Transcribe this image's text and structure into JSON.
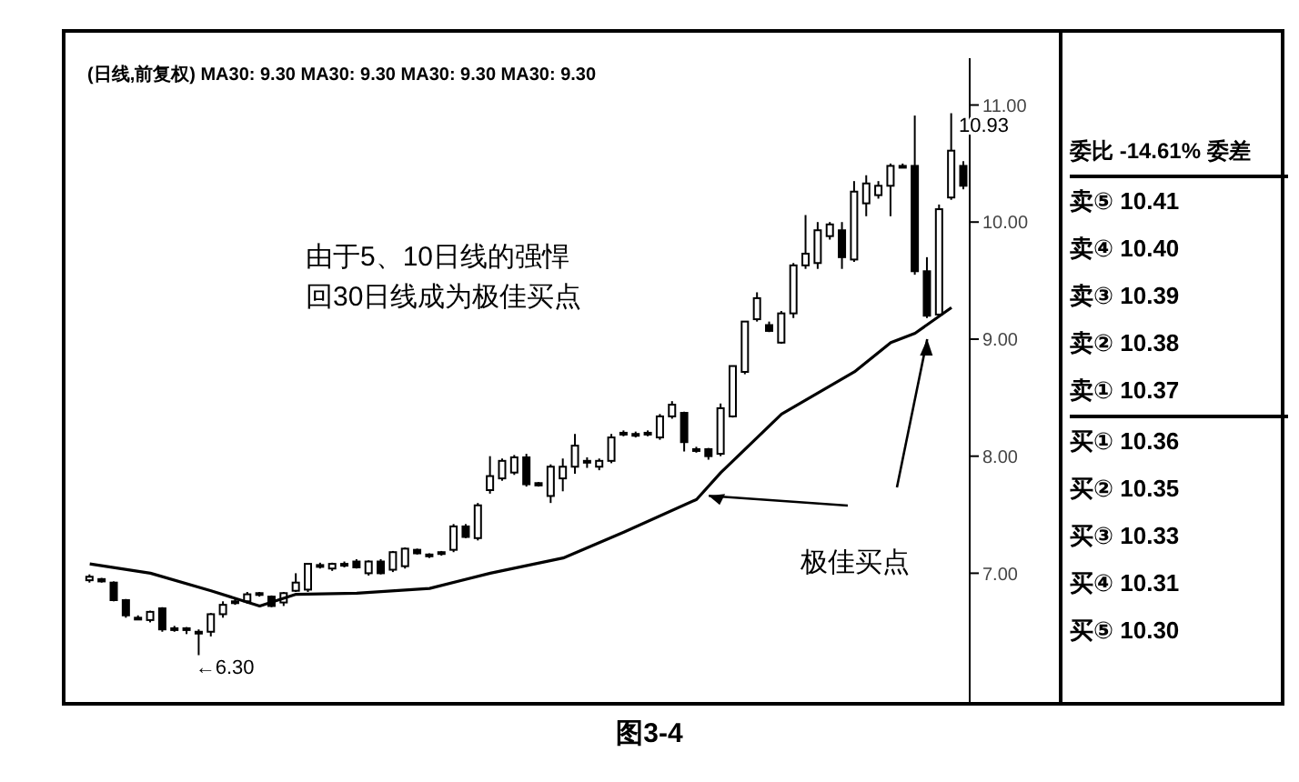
{
  "chart_data": [
    {
      "type": "candlestick",
      "title": "(日线,前复权) MA30: 9.30 MA30: 9.30 MA30: 9.30 MA30: 9.30",
      "categories": [
        null,
        null,
        null,
        null,
        null,
        null,
        null,
        null,
        null,
        null,
        null,
        null,
        null,
        null,
        null,
        null,
        null,
        null,
        null,
        null,
        null,
        null,
        null,
        null,
        null,
        null,
        null,
        null,
        null,
        null,
        null,
        null,
        null,
        null,
        null,
        null,
        null,
        null,
        null,
        null,
        null,
        null,
        null,
        null,
        null,
        null,
        null,
        null,
        null,
        null,
        null,
        null,
        null,
        null,
        null,
        null,
        null,
        null,
        null,
        null,
        null,
        null,
        null,
        null,
        null,
        null,
        null,
        null,
        null,
        null,
        null,
        null,
        null
      ],
      "ohlc": [
        [
          6.94,
          6.99,
          6.92,
          6.97
        ],
        [
          6.95,
          6.96,
          6.92,
          6.93
        ],
        [
          6.92,
          6.93,
          6.76,
          6.77
        ],
        [
          6.77,
          6.78,
          6.62,
          6.64
        ],
        [
          6.62,
          6.64,
          6.6,
          6.62
        ],
        [
          6.6,
          6.68,
          6.58,
          6.67
        ],
        [
          6.7,
          6.71,
          6.5,
          6.52
        ],
        [
          6.53,
          6.55,
          6.5,
          6.52
        ],
        [
          6.52,
          6.54,
          6.48,
          6.53
        ],
        [
          6.5,
          6.52,
          6.3,
          6.5
        ],
        [
          6.5,
          6.66,
          6.46,
          6.65
        ],
        [
          6.65,
          6.76,
          6.62,
          6.73
        ],
        [
          6.75,
          6.78,
          6.73,
          6.76
        ],
        [
          6.76,
          6.84,
          6.74,
          6.82
        ],
        [
          6.83,
          6.84,
          6.8,
          6.82
        ],
        [
          6.8,
          6.81,
          6.71,
          6.72
        ],
        [
          6.75,
          6.84,
          6.72,
          6.83
        ],
        [
          6.85,
          7.0,
          6.84,
          6.92
        ],
        [
          6.86,
          7.08,
          6.84,
          7.08
        ],
        [
          7.06,
          7.09,
          7.04,
          7.07
        ],
        [
          7.04,
          7.09,
          7.02,
          7.08
        ],
        [
          7.07,
          7.1,
          7.05,
          7.08
        ],
        [
          7.1,
          7.12,
          7.04,
          7.05
        ],
        [
          7.0,
          7.11,
          6.98,
          7.1
        ],
        [
          7.1,
          7.12,
          6.99,
          7.0
        ],
        [
          7.03,
          7.19,
          7.01,
          7.18
        ],
        [
          7.06,
          7.22,
          7.04,
          7.21
        ],
        [
          7.2,
          7.21,
          7.16,
          7.17
        ],
        [
          7.15,
          7.17,
          7.13,
          7.16
        ],
        [
          7.17,
          7.19,
          7.15,
          7.18
        ],
        [
          7.2,
          7.42,
          7.18,
          7.4
        ],
        [
          7.4,
          7.42,
          7.3,
          7.31
        ],
        [
          7.3,
          7.6,
          7.28,
          7.58
        ],
        [
          7.71,
          8.0,
          7.68,
          7.83
        ],
        [
          7.81,
          7.98,
          7.79,
          7.96
        ],
        [
          7.86,
          8.01,
          7.84,
          7.99
        ],
        [
          7.99,
          8.02,
          7.74,
          7.76
        ],
        [
          7.77,
          7.78,
          7.74,
          7.75
        ],
        [
          7.66,
          7.93,
          7.6,
          7.91
        ],
        [
          7.81,
          7.98,
          7.7,
          7.91
        ],
        [
          7.91,
          8.19,
          7.85,
          8.09
        ],
        [
          7.96,
          7.99,
          7.9,
          7.96
        ],
        [
          7.91,
          7.98,
          7.88,
          7.96
        ],
        [
          7.96,
          8.19,
          7.94,
          8.16
        ],
        [
          8.19,
          8.22,
          8.17,
          8.2
        ],
        [
          8.18,
          8.21,
          8.16,
          8.19
        ],
        [
          8.19,
          8.22,
          8.17,
          8.2
        ],
        [
          8.16,
          8.36,
          8.14,
          8.34
        ],
        [
          8.34,
          8.47,
          8.32,
          8.44
        ],
        [
          8.37,
          8.38,
          8.04,
          8.12
        ],
        [
          8.06,
          8.08,
          8.03,
          8.06
        ],
        [
          8.06,
          8.07,
          7.97,
          8.0
        ],
        [
          8.02,
          8.45,
          8.0,
          8.41
        ],
        [
          8.34,
          8.77,
          8.33,
          8.77
        ],
        [
          8.72,
          9.15,
          8.7,
          9.15
        ],
        [
          9.17,
          9.4,
          9.15,
          9.35
        ],
        [
          9.12,
          9.15,
          9.06,
          9.07
        ],
        [
          8.97,
          9.24,
          8.96,
          9.22
        ],
        [
          9.22,
          9.65,
          9.18,
          9.63
        ],
        [
          9.63,
          10.06,
          9.6,
          9.73
        ],
        [
          9.65,
          10.0,
          9.6,
          9.93
        ],
        [
          9.88,
          10.0,
          9.85,
          9.98
        ],
        [
          9.93,
          10.0,
          9.6,
          9.7
        ],
        [
          9.68,
          10.35,
          9.66,
          10.26
        ],
        [
          10.16,
          10.4,
          10.05,
          10.33
        ],
        [
          10.23,
          10.35,
          10.2,
          10.31
        ],
        [
          10.31,
          10.5,
          10.05,
          10.48
        ],
        [
          10.48,
          10.5,
          10.46,
          10.48
        ],
        [
          10.48,
          10.91,
          9.55,
          9.58
        ],
        [
          9.58,
          9.7,
          9.18,
          9.2
        ],
        [
          9.21,
          10.15,
          9.19,
          10.11
        ],
        [
          10.21,
          10.93,
          10.19,
          10.61
        ],
        [
          10.48,
          10.52,
          10.28,
          10.31
        ]
      ],
      "series": [
        {
          "type": "line",
          "color": "#000000",
          "values": [
            7.08,
            null,
            null,
            null,
            null,
            7.0,
            null,
            null,
            null,
            null,
            6.85,
            null,
            null,
            null,
            6.72,
            null,
            null,
            6.82,
            null,
            null,
            null,
            null,
            6.83,
            null,
            null,
            null,
            null,
            null,
            6.87,
            null,
            null,
            null,
            null,
            7.0,
            null,
            null,
            null,
            null,
            null,
            7.13,
            null,
            null,
            null,
            null,
            7.35,
            null,
            null,
            null,
            null,
            null,
            7.63,
            null,
            7.86,
            null,
            null,
            null,
            null,
            8.36,
            null,
            null,
            null,
            null,
            null,
            8.72,
            null,
            null,
            8.97,
            null,
            9.05,
            null,
            null,
            9.27,
            null
          ]
        }
      ],
      "ylim": [
        5.9,
        11.4
      ],
      "yticks": [
        {
          "value": 7,
          "label": "7.00"
        },
        {
          "value": 8,
          "label": "8.00"
        },
        {
          "value": 9,
          "label": "9.00"
        },
        {
          "value": 10,
          "label": "10.00"
        },
        {
          "value": 11,
          "label": "11.00"
        }
      ],
      "annotations": [
        "由于5、10日线的强悍",
        "回30日线成为极佳买点",
        "极佳买点",
        "10.93",
        "←6.30",
        "图3-4"
      ]
    },
    {
      "type": "other",
      "annotations": [
        "委比 -14.61% 委差",
        "卖⑤ 10.41",
        "卖④ 10.40",
        "卖③ 10.39",
        "卖② 10.38",
        "卖① 10.37",
        "买① 10.36",
        "买② 10.35",
        "买③ 10.33",
        "买④ 10.31",
        "买⑤ 10.30"
      ]
    }
  ]
}
